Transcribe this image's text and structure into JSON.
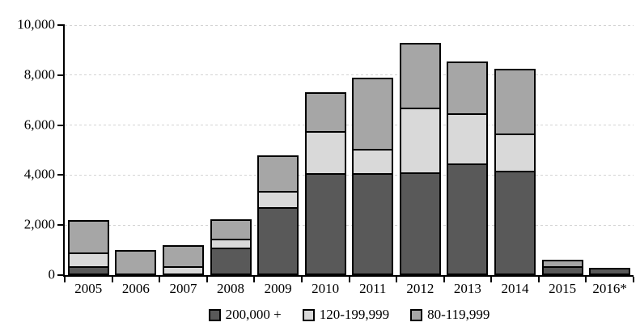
{
  "chart_data": {
    "type": "bar",
    "stacked": true,
    "title": "",
    "xlabel": "",
    "ylabel": "",
    "categories": [
      "2005",
      "2006",
      "2007",
      "2008",
      "2009",
      "2010",
      "2011",
      "2012",
      "2013",
      "2014",
      "2015",
      "2016*"
    ],
    "series": [
      {
        "name": "200,000 +",
        "color": "#595959",
        "values": [
          300,
          0,
          0,
          1050,
          2650,
          4000,
          4000,
          4050,
          4400,
          4100,
          300,
          300
        ]
      },
      {
        "name": "120-199,999",
        "color": "#d9d9d9",
        "values": [
          550,
          0,
          300,
          330,
          650,
          1700,
          1000,
          2600,
          2000,
          1500,
          0,
          0
        ]
      },
      {
        "name": "80-119,999",
        "color": "#a6a6a6",
        "values": [
          1350,
          1000,
          900,
          870,
          1500,
          1600,
          2900,
          2650,
          2150,
          2650,
          300,
          0
        ]
      }
    ],
    "stack_order_bottom_to_top": [
      "200,000 +",
      "120-199,999",
      "80-119,999"
    ],
    "totals": [
      2200,
      1000,
      1200,
      2250,
      4800,
      7300,
      7900,
      9300,
      8550,
      8250,
      600,
      300
    ],
    "ylim": [
      0,
      10000
    ],
    "yticks": [
      {
        "value": 0,
        "label": "0"
      },
      {
        "value": 2000,
        "label": "2,000"
      },
      {
        "value": 4000,
        "label": "4,000"
      },
      {
        "value": 6000,
        "label": "6,000"
      },
      {
        "value": 8000,
        "label": "8,000"
      },
      {
        "value": 10000,
        "label": "10,000"
      }
    ],
    "grid": "horizontal-dashed",
    "gridline_color": "#d3d3d3",
    "axis_color": "#000000",
    "bar_border_color": "#000000",
    "background": "#ffffff",
    "legend_position": "bottom"
  }
}
